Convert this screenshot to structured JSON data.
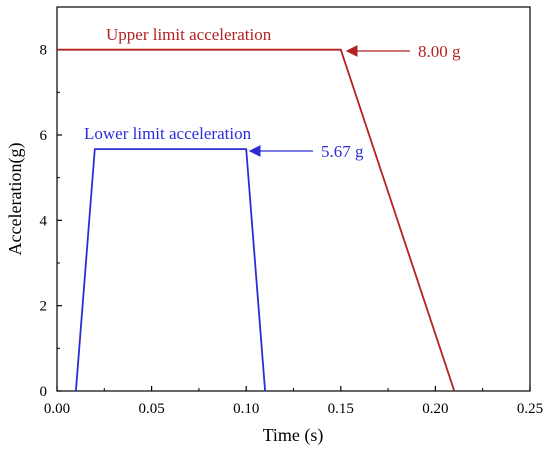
{
  "chart_data": {
    "type": "line",
    "title": "",
    "xlabel": "Time (s)",
    "ylabel": "Acceleration(g)",
    "xlim": [
      0,
      0.25
    ],
    "ylim": [
      0,
      9
    ],
    "x_ticks": [
      "0.00",
      "0.05",
      "0.10",
      "0.15",
      "0.20",
      "0.25"
    ],
    "y_ticks": [
      "0",
      "2",
      "4",
      "6",
      "8"
    ],
    "grid": false,
    "series": [
      {
        "name": "Upper limit acceleration",
        "color": "#b22222",
        "x": [
          0.0,
          0.15,
          0.21
        ],
        "y": [
          8.0,
          8.0,
          0.0
        ]
      },
      {
        "name": "Lower limit acceleration",
        "color": "#2d2dd6",
        "x": [
          0.01,
          0.02,
          0.1,
          0.11
        ],
        "y": [
          0.0,
          5.67,
          5.67,
          0.0
        ]
      }
    ],
    "annotations": [
      {
        "text": "8.00 g",
        "x": 0.15,
        "y": 8.0,
        "color": "#b22222"
      },
      {
        "text": "5.67 g",
        "x": 0.1,
        "y": 5.67,
        "color": "#2d2dd6"
      }
    ]
  }
}
